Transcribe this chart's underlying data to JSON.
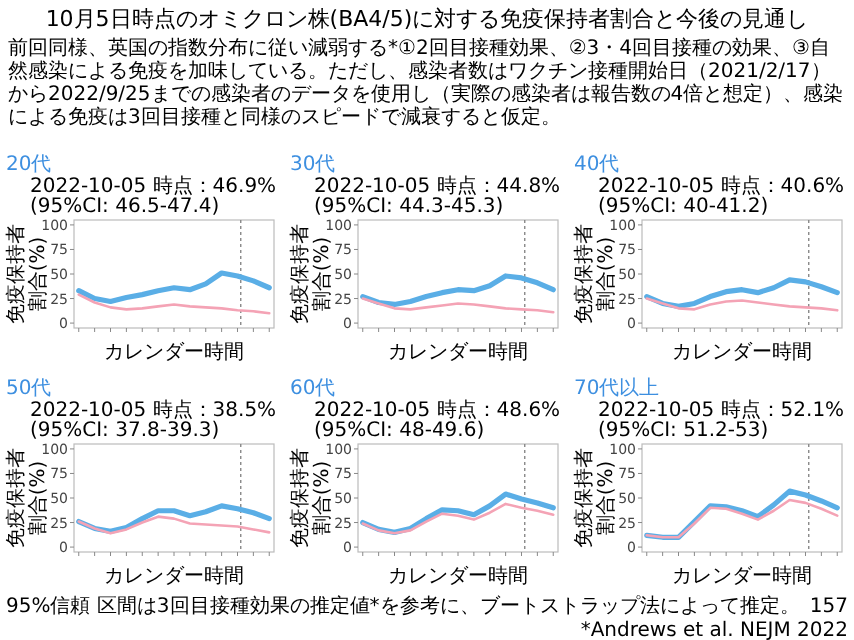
{
  "chart_data": [
    {
      "type": "other",
      "title": "10月5日時点のオミクロン株(BA4/5)に対する免疫保持者割合と今後の見通し",
      "subtitle": "前回同様、英国の指数分布に従い減弱する*①2回目接種効果、②3・4回目接種の効果、③自然感染による免疫を加味している。ただし、感染者数はワクチン接種開始日（2021/2/17）から2022/9/25までの感染者のデータを使用し（実際の感染者は報告数の4倍と想定）、感染による免疫は3回目接種と同様のスピードで減衰すると仮定。",
      "annotations": [
        "95%信頼 区間は3回目接種効果の推定値*を参考に、ブートストラップ法によって推定。",
        "157",
        "*Andrews et al. NEJM 2022"
      ]
    },
    {
      "type": "line",
      "title": "20代",
      "subtitle": "2022-10-05 時点：46.9% (95%CI: 46.5-47.4)",
      "xlabel": "カレンダー時間",
      "ylabel": "免疫保持者割合(%)",
      "categories": [
        null,
        null,
        null,
        null,
        null,
        null,
        null,
        null,
        null,
        null,
        null,
        null,
        null
      ],
      "series": [
        {
          "color": "#5aaee6",
          "values": [
            33,
            25,
            22,
            26,
            29,
            33,
            36,
            34,
            40,
            51,
            48,
            43,
            36
          ]
        },
        {
          "color": "#f4a3b5",
          "values": [
            29,
            21,
            16,
            14,
            15,
            17,
            19,
            17,
            16,
            15,
            13,
            12,
            10
          ]
        }
      ],
      "ylim": [
        -5,
        105
      ],
      "yticks": [
        0,
        25,
        50,
        75,
        100
      ]
    },
    {
      "type": "line",
      "title": "30代",
      "subtitle": "2022-10-05 時点：44.8% (95%CI: 44.3-45.3)",
      "xlabel": "カレンダー時間",
      "ylabel": "免疫保持者割合(%)",
      "categories": [
        null,
        null,
        null,
        null,
        null,
        null,
        null,
        null,
        null,
        null,
        null,
        null,
        null
      ],
      "series": [
        {
          "color": "#5aaee6",
          "values": [
            27,
            21,
            19,
            22,
            27,
            31,
            34,
            33,
            38,
            48,
            46,
            41,
            34
          ]
        },
        {
          "color": "#f4a3b5",
          "values": [
            25,
            20,
            15,
            14,
            16,
            18,
            20,
            19,
            17,
            15,
            14,
            13,
            11
          ]
        }
      ],
      "ylim": [
        -5,
        105
      ],
      "yticks": [
        0,
        25,
        50,
        75,
        100
      ]
    },
    {
      "type": "line",
      "title": "40代",
      "subtitle": "2022-10-05 時点：40.6% (95%CI: 40-41.2)",
      "xlabel": "カレンダー時間",
      "ylabel": "免疫保持者割合(%)",
      "categories": [
        null,
        null,
        null,
        null,
        null,
        null,
        null,
        null,
        null,
        null,
        null,
        null,
        null
      ],
      "series": [
        {
          "color": "#5aaee6",
          "values": [
            27,
            20,
            17,
            20,
            27,
            32,
            34,
            31,
            36,
            44,
            42,
            37,
            31
          ]
        },
        {
          "color": "#f4a3b5",
          "values": [
            25,
            20,
            15,
            14,
            19,
            22,
            23,
            21,
            19,
            17,
            16,
            15,
            13
          ]
        }
      ],
      "ylim": [
        -5,
        105
      ],
      "yticks": [
        0,
        25,
        50,
        75,
        100
      ]
    },
    {
      "type": "line",
      "title": "50代",
      "subtitle": "2022-10-05 時点：38.5% (95%CI: 37.8-39.3)",
      "xlabel": "カレンダー時間",
      "ylabel": "免疫保持者割合(%)",
      "categories": [
        null,
        null,
        null,
        null,
        null,
        null,
        null,
        null,
        null,
        null,
        null,
        null,
        null
      ],
      "series": [
        {
          "color": "#5aaee6",
          "values": [
            26,
            19,
            16,
            20,
            29,
            37,
            37,
            32,
            36,
            42,
            39,
            35,
            29
          ]
        },
        {
          "color": "#f4a3b5",
          "values": [
            26,
            19,
            14,
            18,
            25,
            31,
            29,
            24,
            23,
            22,
            21,
            18,
            15
          ]
        }
      ],
      "ylim": [
        -5,
        105
      ],
      "yticks": [
        0,
        25,
        50,
        75,
        100
      ]
    },
    {
      "type": "line",
      "title": "60代",
      "subtitle": "2022-10-05 時点：48.6% (95%CI: 48-49.6)",
      "xlabel": "カレンダー時間",
      "ylabel": "免疫保持者割合(%)",
      "categories": [
        null,
        null,
        null,
        null,
        null,
        null,
        null,
        null,
        null,
        null,
        null,
        null,
        null
      ],
      "series": [
        {
          "color": "#5aaee6",
          "values": [
            25,
            18,
            15,
            19,
            29,
            38,
            37,
            33,
            42,
            54,
            49,
            45,
            40
          ]
        },
        {
          "color": "#f4a3b5",
          "values": [
            24,
            17,
            14,
            17,
            26,
            34,
            32,
            28,
            35,
            44,
            40,
            37,
            33
          ]
        }
      ],
      "ylim": [
        -5,
        105
      ],
      "yticks": [
        0,
        25,
        50,
        75,
        100
      ]
    },
    {
      "type": "line",
      "title": "70代以上",
      "subtitle": "2022-10-05 時点：52.1% (95%CI: 51.2-53)",
      "xlabel": "カレンダー時間",
      "ylabel": "免疫保持者割合(%)",
      "categories": [
        null,
        null,
        null,
        null,
        null,
        null,
        null,
        null,
        null,
        null,
        null,
        null,
        null
      ],
      "series": [
        {
          "color": "#5aaee6",
          "values": [
            12,
            10,
            10,
            26,
            42,
            41,
            37,
            31,
            43,
            57,
            53,
            47,
            40
          ]
        },
        {
          "color": "#f4a3b5",
          "values": [
            12,
            10,
            10,
            24,
            40,
            39,
            34,
            28,
            37,
            48,
            45,
            39,
            32
          ]
        }
      ],
      "ylim": [
        -5,
        105
      ],
      "yticks": [
        0,
        25,
        50,
        75,
        100
      ]
    }
  ]
}
